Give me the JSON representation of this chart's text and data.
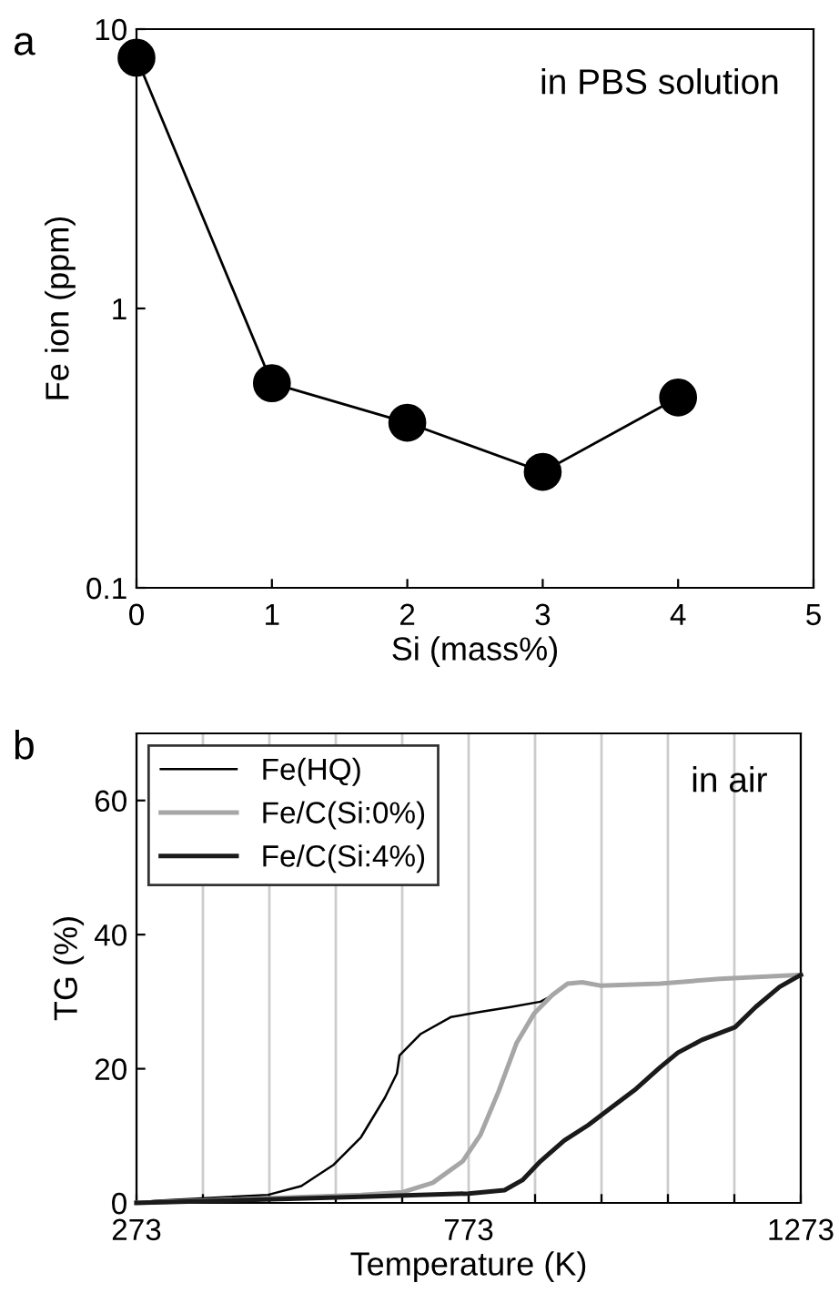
{
  "chart_data": [
    {
      "type": "line",
      "xlabel": "Si (mass%)",
      "ylabel": "Fe ion (ppm)",
      "log": "y",
      "xlim": [
        0,
        5
      ],
      "xticks": [
        0,
        1,
        2,
        3,
        4,
        5
      ],
      "ylim": [
        0.1,
        10
      ],
      "yticks": [
        0.1,
        1,
        10
      ],
      "marker": "circle",
      "grid": false,
      "legend": false,
      "annotations": [
        "a",
        "in PBS solution"
      ],
      "series": [
        {
          "color": "#000000",
          "x": [
            0,
            1,
            2,
            3,
            4
          ],
          "values": [
            7.9,
            0.54,
            0.39,
            0.26,
            0.48
          ]
        }
      ]
    },
    {
      "type": "line",
      "xlabel": "Temperature (K)",
      "ylabel": "TG (%)",
      "xlim": [
        273,
        1273
      ],
      "xticks": [
        273,
        {
          "value": 373,
          "label": null
        },
        {
          "value": 473,
          "label": null
        },
        {
          "value": 573,
          "label": null
        },
        {
          "value": 673,
          "label": null
        },
        773,
        {
          "value": 873,
          "label": null
        },
        {
          "value": 973,
          "label": null
        },
        {
          "value": 1073,
          "label": null
        },
        {
          "value": 1173,
          "label": null
        },
        1273
      ],
      "ylim": [
        0,
        70
      ],
      "yticks": [
        0,
        20,
        40,
        60
      ],
      "grid": "x",
      "legend": "top left",
      "marker": "none",
      "annotations": [
        "b",
        "in air"
      ],
      "series": [
        {
          "name": "Fe(HQ)",
          "color": "#000000",
          "x": [
            273,
            300,
            377,
            471,
            521,
            570,
            611,
            647,
            665,
            669,
            701,
            746,
            791,
            836,
            881,
            899
          ],
          "values": [
            0,
            0.3,
            0.7,
            1.2,
            2.5,
            5.7,
            9.8,
            15.7,
            19.3,
            22,
            25.2,
            27.7,
            28.5,
            29.2,
            30,
            30.9
          ]
        },
        {
          "name": "Fe/C(Si:0%)",
          "color": "#a6a6a6",
          "x": [
            273,
            476,
            611,
            674,
            719,
            764,
            791,
            818,
            845,
            872,
            899,
            922,
            944,
            971,
            1061,
            1151,
            1273
          ],
          "values": [
            0,
            0.7,
            1.2,
            1.6,
            3,
            6.2,
            10.2,
            16.6,
            23.8,
            28.3,
            31,
            32.7,
            32.9,
            32.4,
            32.7,
            33.4,
            34
          ]
        },
        {
          "name": "Fe/C(Si:4%)",
          "color": "#1a1a1a",
          "x": [
            273,
            611,
            773,
            827,
            854,
            881,
            917,
            953,
            989,
            1025,
            1061,
            1088,
            1124,
            1174,
            1205,
            1241,
            1273
          ],
          "values": [
            0,
            0.9,
            1.4,
            1.9,
            3.4,
            6.2,
            9.3,
            11.6,
            14.3,
            17,
            20.2,
            22.4,
            24.3,
            26.2,
            29.2,
            32.2,
            34
          ]
        }
      ]
    }
  ]
}
